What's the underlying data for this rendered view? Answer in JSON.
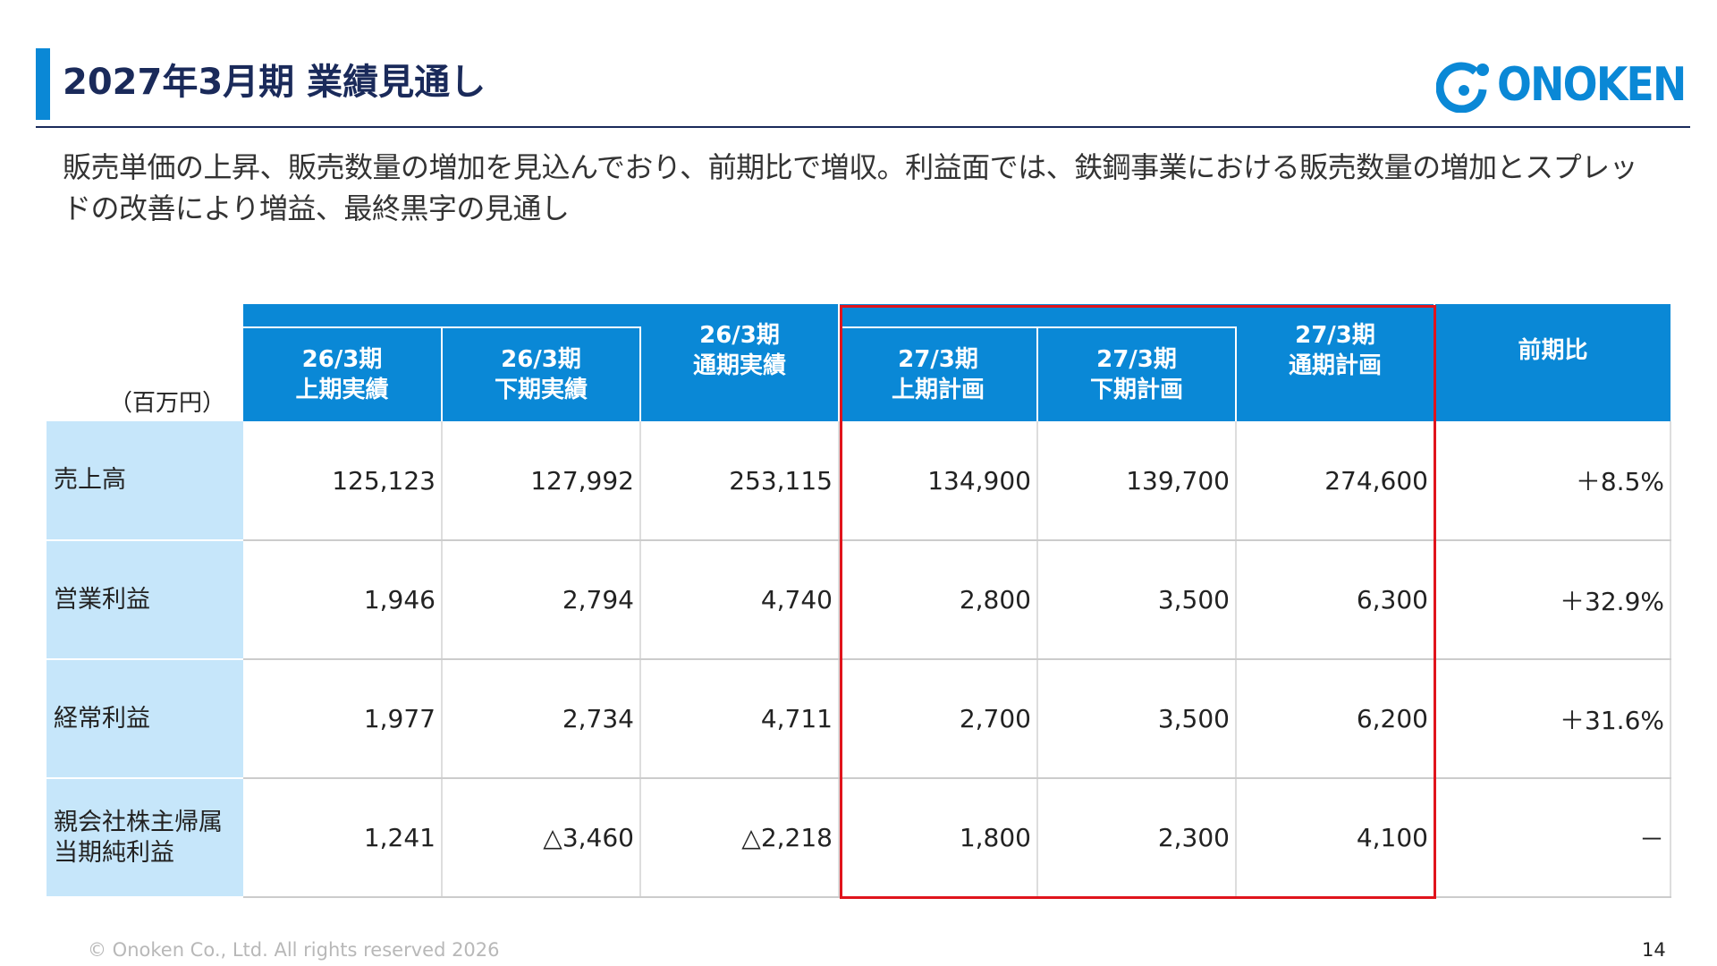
{
  "slide": {
    "title": "2027年3月期 業績見通し",
    "summary": "販売単価の上昇、販売数量の増加を見込んでおり、前期比で増収。利益面では、鉄鋼事業における販売数量の増加とスプレッドの改善により増益、最終黒字の見通し",
    "footer": "© Onoken Co., Ltd. All rights reserved 2026",
    "page_number": "14"
  },
  "logo": {
    "text": "ONOKEN",
    "color": "#0a88d6"
  },
  "table": {
    "unit": "（百万円）",
    "headers": [
      {
        "line1": "26/3期",
        "line2": "上期実績"
      },
      {
        "line1": "26/3期",
        "line2": "下期実績"
      },
      {
        "line1": "26/3期",
        "line2": "通期実績"
      },
      {
        "line1": "27/3期",
        "line2": "上期計画"
      },
      {
        "line1": "27/3期",
        "line2": "下期計画"
      },
      {
        "line1": "27/3期",
        "line2": "通期計画"
      },
      {
        "line1": "前期比",
        "line2": ""
      }
    ],
    "rows": [
      {
        "label": "売上高",
        "label2": "",
        "values": [
          "125,123",
          "127,992",
          "253,115",
          "134,900",
          "139,700",
          "274,600",
          "＋8.5%"
        ]
      },
      {
        "label": "営業利益",
        "label2": "",
        "values": [
          "1,946",
          "2,794",
          "4,740",
          "2,800",
          "3,500",
          "6,300",
          "＋32.9%"
        ]
      },
      {
        "label": "経常利益",
        "label2": "",
        "values": [
          "1,977",
          "2,734",
          "4,711",
          "2,700",
          "3,500",
          "6,200",
          "＋31.6%"
        ]
      },
      {
        "label": "親会社株主帰属",
        "label2": "当期純利益",
        "values": [
          "1,241",
          "△3,460",
          "△2,218",
          "1,800",
          "2,300",
          "4,100",
          "－"
        ]
      }
    ],
    "colors": {
      "header_bg": "#0a88d6",
      "label_bg": "#c6e6fa",
      "highlight_border": "#e0141c"
    }
  }
}
